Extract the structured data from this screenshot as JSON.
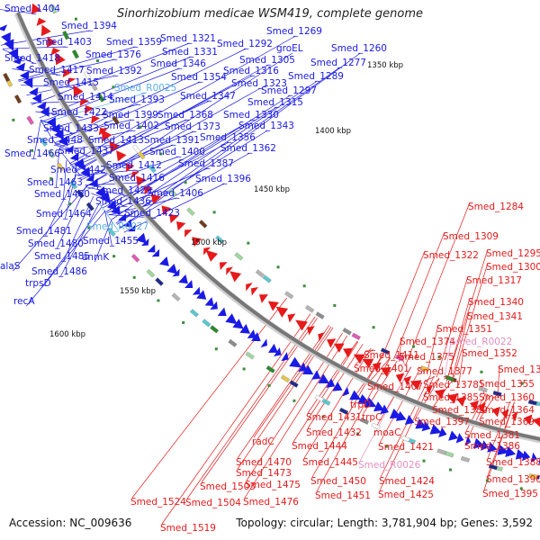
{
  "title": "Sinorhizobium medicae WSM419, complete genome",
  "footer": {
    "accession": "Accession: NC_009636",
    "summary": "Topology: circular; Length: 3,781,904 bp; Genes: 3,592"
  },
  "colors": {
    "forward": "#1a1ae6",
    "reverse": "#e61a1a",
    "rna": "#e38fbf",
    "forward_rna": "#5aaee6",
    "backbone": "#777777",
    "tick_mark": "#3c8c3c"
  },
  "kbp_ticks": [
    "1350 kbp",
    "1400 kbp",
    "1450 kbp",
    "1500 kbp",
    "1550 kbp",
    "1600 kbp"
  ],
  "forward_labels": [
    "Smed_1404",
    "Smed_1394",
    "Smed_1403",
    "Smed_1359",
    "Smed_1321",
    "Smed_1292",
    "Smed_1269",
    "Smed_1418",
    "Smed_1376",
    "Smed_1331",
    "Smed_1305",
    "groEL",
    "Smed_1277",
    "Smed_1260",
    "Smed_1417",
    "Smed_1392",
    "Smed_1346",
    "Smed_1316",
    "Smed_1289",
    "Smed_1415",
    "Smed_R0025",
    "Smed_1354",
    "Smed_1323",
    "Smed_1297",
    "Smed_1414",
    "Smed_1393",
    "Smed_1347",
    "Smed_1315",
    "Smed_1422",
    "Smed_1399",
    "Smed_1368",
    "Smed_1330",
    "Smed_1433",
    "Smed_1402",
    "Smed_1373",
    "Smed_1343",
    "Smed_1448",
    "Smed_1413",
    "Smed_1391",
    "Smed_1356",
    "Smed_1466",
    "Smed_1437",
    "Smed_1400",
    "Smed_1362",
    "Smed_1412",
    "Smed_1387",
    "Smed_1442",
    "Smed_1416",
    "Smed_1396",
    "Smed_1463",
    "Smed_1429",
    "Smed_1460",
    "Smed_1436",
    "Smed_1406",
    "Smed_1464",
    "Smed_1423",
    "Smed_R0027",
    "Smed_1481",
    "Smed_1455",
    "Smed_1480",
    "Smed_1485",
    "anmK",
    "alaS",
    "Smed_1486",
    "trpsD",
    "recA"
  ],
  "reverse_labels": [
    "Smed_1284",
    "Smed_1309",
    "Smed_1322",
    "Smed_1295",
    "Smed_1300",
    "Smed_1317",
    "Smed_1340",
    "Smed_1341",
    "Smed_1351",
    "Smed_1374",
    "Smed_R0022",
    "Smed_1411",
    "Smed_1352",
    "Smed_1401",
    "Smed_1375",
    "Smed_1353",
    "Smed_1377",
    "Smed_1407",
    "Smed_1378",
    "Smed_1355",
    "Smed_1385",
    "Smed_1360",
    "trpD",
    "Smed_1389",
    "Smed_1364",
    "Smed_1431",
    "trpC",
    "Smed_1397",
    "Smed_1369",
    "Smed_1432",
    "moaC",
    "Smed_1381",
    "radC",
    "Smed_1444",
    "Smed_1421",
    "Smed_1386",
    "Smed_1445",
    "Smed_R0026",
    "Smed_1470",
    "Smed_1388",
    "Smed_1473",
    "Smed_1424",
    "Smed_1450",
    "Smed_1390",
    "Smed_1503",
    "Smed_1475",
    "Smed_1425",
    "Smed_1395",
    "Smed_1451",
    "Smed_1524",
    "Smed_1504",
    "Smed_1476",
    "Smed_1519"
  ]
}
